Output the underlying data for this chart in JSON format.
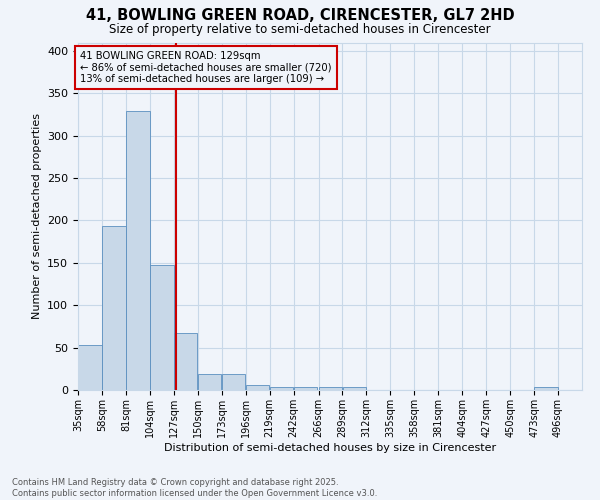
{
  "title": "41, BOWLING GREEN ROAD, CIRENCESTER, GL7 2HD",
  "subtitle": "Size of property relative to semi-detached houses in Cirencester",
  "xlabel": "Distribution of semi-detached houses by size in Cirencester",
  "ylabel": "Number of semi-detached properties",
  "bar_edges": [
    35,
    58,
    81,
    104,
    127,
    150,
    173,
    196,
    219,
    242,
    266,
    289,
    312,
    335,
    358,
    381,
    404,
    427,
    450,
    473,
    496
  ],
  "bar_heights": [
    53,
    193,
    329,
    148,
    67,
    19,
    19,
    6,
    4,
    4,
    4,
    4,
    0,
    0,
    0,
    0,
    0,
    0,
    0,
    3
  ],
  "bar_color": "#c8d8e8",
  "bar_edge_color": "#5a8fbf",
  "property_value": 129,
  "property_line_color": "#cc0000",
  "annotation_title": "41 BOWLING GREEN ROAD: 129sqm",
  "annotation_line1": "← 86% of semi-detached houses are smaller (720)",
  "annotation_line2": "13% of semi-detached houses are larger (109) →",
  "annotation_box_color": "#cc0000",
  "ylim": [
    0,
    410
  ],
  "yticks": [
    0,
    50,
    100,
    150,
    200,
    250,
    300,
    350,
    400
  ],
  "footer_line1": "Contains HM Land Registry data © Crown copyright and database right 2025.",
  "footer_line2": "Contains public sector information licensed under the Open Government Licence v3.0.",
  "bg_color": "#f0f4fa",
  "grid_color": "#c8d8e8"
}
